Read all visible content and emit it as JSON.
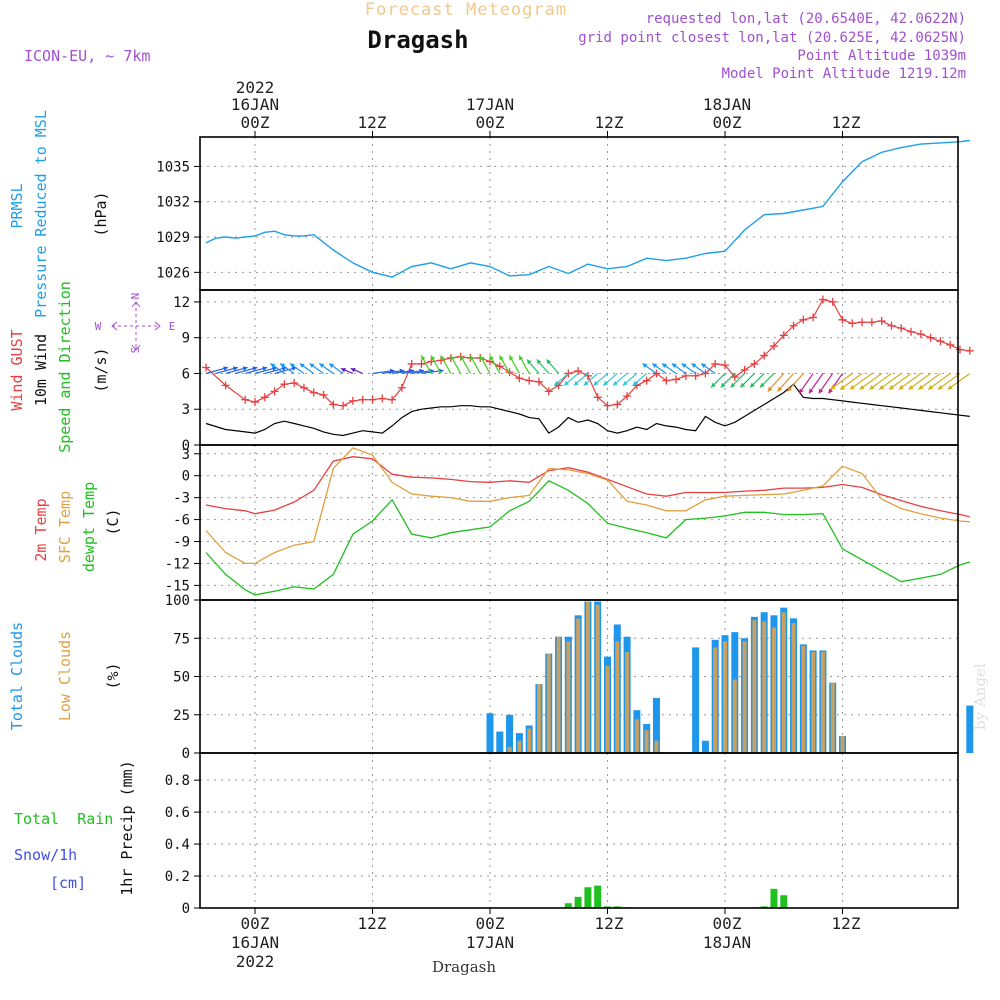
{
  "header": {
    "subtitle": "Forecast Meteogram",
    "title": "Dragash",
    "model": "ICON-EU, ~ 7km",
    "requested": "requested lon,lat (20.6540E, 42.0622N)",
    "grid": "grid point closest lon,lat (20.625E, 42.0625N)",
    "altitude": "Point Altitude 1039m",
    "model_altitude": "Model Point Altitude 1219.12m",
    "footer": "Dragash",
    "watermark": "by Angel"
  },
  "time_axis": {
    "top_year": "2022",
    "top_dates": [
      "16JAN",
      "17JAN",
      "18JAN"
    ],
    "top_hours": [
      "00Z",
      "12Z",
      "00Z",
      "12Z",
      "00Z",
      "12Z"
    ],
    "bottom_hours": [
      "00Z",
      "12Z",
      "00Z",
      "12Z",
      "00Z",
      "12Z"
    ],
    "bottom_dates": [
      "16JAN",
      "17JAN",
      "18JAN"
    ],
    "bottom_year": "2022"
  },
  "labels": {
    "prmsl_1": "PRMSL",
    "prmsl_2": "Pressure Reduced to MSL",
    "prmsl_unit": "(hPa)",
    "wind_1": "Wind GUST",
    "wind_2": "10m Wind",
    "wind_3": "Speed and Direction",
    "wind_unit": "(m/s)",
    "compass_n": "N",
    "compass_s": "S",
    "compass_w": "W",
    "compass_e": "E",
    "temp_1": "2m Temp",
    "temp_2": "SFC Temp",
    "temp_3": "dewpt Temp",
    "temp_unit": "(C)",
    "cloud_1": "Total Clouds",
    "cloud_2": "Low Clouds",
    "cloud_unit": "(%)",
    "precip_1": "Total  Rain",
    "precip_2": "Snow/1h",
    "precip_3": "[cm]",
    "precip_unit": "1hr Precip (mm)"
  },
  "colors": {
    "pressure": "#1ea0e8",
    "gust": "#e84040",
    "wind": "#000000",
    "temp2m": "#e84040",
    "sfc": "#e0a040",
    "dewpt": "#20c020",
    "total_clouds": "#1e96ec",
    "low_clouds": "#c8a060",
    "rain": "#20c020",
    "snow": "#4050e0",
    "title_subtitle": "#f0c890",
    "meta": "#a050d0"
  },
  "chart_data": [
    {
      "type": "line",
      "title": "PRMSL Pressure Reduced to MSL",
      "ylabel": "(hPa)",
      "x_unit": "hours since 16JAN 00Z",
      "ylim": [
        1024.5,
        1037.5
      ],
      "yticks": [
        1026,
        1029,
        1032,
        1035
      ],
      "x": [
        -5,
        -4,
        -3,
        -2,
        -1,
        0,
        1,
        2,
        3,
        4,
        5,
        6,
        8,
        10,
        12,
        14,
        16,
        18,
        20,
        22,
        24,
        26,
        28,
        30,
        32,
        34,
        36,
        38,
        40,
        42,
        44,
        46,
        48,
        50,
        52,
        54,
        56,
        58,
        60,
        62,
        64,
        66,
        68,
        70,
        72,
        73
      ],
      "series": [
        {
          "name": "PRMSL",
          "values": [
            1028.5,
            1028.9,
            1029.0,
            1028.9,
            1029.0,
            1029.1,
            1029.4,
            1029.5,
            1029.2,
            1029.1,
            1029.1,
            1029.2,
            1027.9,
            1026.8,
            1026.0,
            1025.6,
            1026.5,
            1026.8,
            1026.3,
            1026.8,
            1026.5,
            1025.7,
            1025.8,
            1026.5,
            1025.9,
            1026.7,
            1026.3,
            1026.5,
            1027.2,
            1027.0,
            1027.2,
            1027.6,
            1027.8,
            1029.6,
            1030.9,
            1031.0,
            1031.3,
            1031.6,
            1033.7,
            1035.4,
            1036.2,
            1036.6,
            1036.9,
            1037.0,
            1037.1,
            1037.2
          ]
        }
      ]
    },
    {
      "type": "line",
      "title": "Wind GUST / 10m Wind Speed and Direction",
      "ylabel": "(m/s)",
      "x_unit": "hours since 16JAN 00Z",
      "ylim": [
        0,
        13
      ],
      "yticks": [
        0,
        3,
        6,
        9,
        12
      ],
      "x": [
        -5,
        -3,
        -1,
        0,
        1,
        2,
        3,
        4,
        5,
        6,
        7,
        8,
        9,
        10,
        11,
        12,
        13,
        14,
        15,
        16,
        17,
        18,
        19,
        20,
        21,
        22,
        23,
        24,
        25,
        26,
        27,
        28,
        29,
        30,
        31,
        32,
        33,
        34,
        35,
        36,
        37,
        38,
        39,
        40,
        41,
        42,
        43,
        44,
        45,
        46,
        47,
        48,
        49,
        50,
        51,
        52,
        53,
        54,
        55,
        56,
        57,
        58,
        59,
        60,
        61,
        62,
        63,
        64,
        65,
        66,
        67,
        68,
        69,
        70,
        71,
        72,
        73
      ],
      "series": [
        {
          "name": "Wind GUST",
          "values": [
            6.5,
            5.0,
            3.8,
            3.6,
            4.0,
            4.5,
            5.1,
            5.2,
            4.8,
            4.4,
            4.2,
            3.4,
            3.3,
            3.7,
            3.8,
            3.8,
            3.9,
            3.8,
            4.8,
            6.8,
            6.8,
            7.0,
            7.1,
            7.3,
            7.4,
            7.3,
            7.3,
            7.0,
            6.6,
            6.1,
            5.6,
            5.4,
            5.3,
            4.5,
            5.0,
            6.0,
            6.2,
            5.8,
            4.0,
            3.3,
            3.4,
            4.1,
            5.0,
            5.4,
            6.0,
            5.4,
            5.5,
            5.8,
            5.8,
            6.0,
            6.8,
            6.7,
            5.7,
            6.3,
            6.8,
            7.5,
            8.3,
            9.2,
            10.0,
            10.5,
            10.7,
            12.2,
            12.0,
            10.5,
            10.2,
            10.3,
            10.3,
            10.4,
            10.0,
            9.8,
            9.5,
            9.3,
            9.0,
            8.7,
            8.4,
            8.0,
            7.9
          ]
        },
        {
          "name": "10m Wind",
          "values": [
            1.8,
            1.3,
            1.1,
            1.0,
            1.3,
            1.8,
            2.0,
            1.8,
            1.6,
            1.4,
            1.1,
            0.9,
            0.8,
            1.0,
            1.2,
            1.1,
            1.0,
            1.6,
            2.3,
            2.8,
            3.0,
            3.1,
            3.2,
            3.2,
            3.3,
            3.3,
            3.2,
            3.2,
            3.0,
            2.8,
            2.6,
            2.3,
            2.2,
            1.0,
            1.5,
            2.3,
            1.9,
            2.1,
            1.8,
            1.2,
            1.0,
            1.2,
            1.5,
            1.3,
            1.8,
            1.6,
            1.5,
            1.3,
            1.2,
            2.4,
            1.9,
            1.6,
            1.9,
            2.4,
            2.9,
            3.4,
            3.9,
            4.4,
            5.1,
            4.0,
            3.9,
            3.9,
            3.8,
            3.7,
            3.6,
            3.5,
            3.4,
            3.3,
            3.2,
            3.1,
            3.0,
            2.9,
            2.8,
            2.7,
            2.6,
            2.5,
            2.4
          ]
        }
      ]
    },
    {
      "type": "line",
      "title": "2m Temp / SFC Temp / dewpt Temp",
      "ylabel": "(C)",
      "x_unit": "hours since 16JAN 00Z",
      "ylim": [
        -17,
        4.2
      ],
      "yticks": [
        -15,
        -12,
        -9,
        -6,
        -3,
        0,
        3
      ],
      "x": [
        -5,
        -3,
        -1,
        0,
        2,
        4,
        6,
        8,
        10,
        12,
        14,
        16,
        18,
        20,
        22,
        24,
        26,
        28,
        30,
        32,
        34,
        36,
        38,
        40,
        42,
        44,
        46,
        48,
        50,
        52,
        54,
        56,
        58,
        60,
        62,
        64,
        66,
        68,
        70,
        72,
        73
      ],
      "series": [
        {
          "name": "2m Temp",
          "values": [
            -4.0,
            -4.5,
            -4.8,
            -5.2,
            -4.7,
            -3.6,
            -2.0,
            2.0,
            2.6,
            2.3,
            0.2,
            -0.2,
            -0.3,
            -0.5,
            -0.8,
            -0.9,
            -0.7,
            -0.9,
            0.7,
            1.1,
            0.5,
            -0.5,
            -1.5,
            -2.5,
            -2.8,
            -2.3,
            -2.3,
            -2.3,
            -2.1,
            -2.0,
            -1.7,
            -1.7,
            -1.6,
            -1.2,
            -1.6,
            -2.6,
            -3.4,
            -4.2,
            -4.8,
            -5.3,
            -5.6
          ]
        },
        {
          "name": "SFC Temp",
          "values": [
            -7.5,
            -10.5,
            -12.0,
            -12.0,
            -10.5,
            -9.5,
            -9.0,
            1.0,
            3.8,
            2.8,
            -0.9,
            -2.5,
            -2.8,
            -3.0,
            -3.5,
            -3.5,
            -3.0,
            -2.7,
            1.0,
            0.8,
            0.3,
            -0.6,
            -3.5,
            -4.0,
            -4.8,
            -4.8,
            -3.3,
            -2.8,
            -2.7,
            -2.6,
            -2.5,
            -2.0,
            -1.4,
            1.3,
            0.3,
            -3.2,
            -4.5,
            -5.2,
            -5.8,
            -6.2,
            -6.3
          ]
        },
        {
          "name": "dewpt Temp",
          "values": [
            -10.5,
            -13.5,
            -15.6,
            -16.3,
            -15.8,
            -15.2,
            -15.5,
            -13.5,
            -8.0,
            -6.2,
            -3.3,
            -8.0,
            -8.5,
            -7.8,
            -7.4,
            -7.0,
            -4.8,
            -3.5,
            -0.7,
            -2.0,
            -3.8,
            -6.5,
            -7.2,
            -7.8,
            -8.5,
            -6.0,
            -5.8,
            -5.5,
            -5.0,
            -5.0,
            -5.3,
            -5.3,
            -5.2,
            -10.0,
            -11.5,
            -13.0,
            -14.5,
            -14.0,
            -13.5,
            -12.2,
            -11.8
          ]
        }
      ]
    },
    {
      "type": "bar",
      "title": "Total Clouds / Low Clouds",
      "ylabel": "(%)",
      "x_unit": "hours since 16JAN 00Z",
      "ylim": [
        0,
        100
      ],
      "yticks": [
        0,
        25,
        50,
        75,
        100
      ],
      "x": [
        24,
        25,
        26,
        27,
        28,
        29,
        30,
        31,
        32,
        33,
        34,
        35,
        36,
        37,
        38,
        39,
        40,
        41,
        42,
        43,
        44,
        45,
        46,
        47,
        48,
        49,
        50,
        51,
        52,
        53,
        54,
        55,
        56,
        57,
        58,
        59,
        60,
        61,
        62,
        63,
        64,
        65,
        66,
        67,
        68,
        69,
        70,
        71,
        72,
        73
      ],
      "series": [
        {
          "name": "Total Clouds",
          "values": [
            26,
            14,
            25,
            13,
            18,
            45,
            65,
            76,
            76,
            90,
            99,
            99,
            63,
            84,
            76,
            28,
            19,
            36,
            0,
            0,
            0,
            69,
            8,
            74,
            77,
            79,
            75,
            89,
            92,
            90,
            95,
            88,
            71,
            67,
            67,
            46,
            11,
            0,
            0,
            0,
            0,
            0,
            0,
            0,
            0,
            0,
            0,
            0,
            0,
            31
          ]
        },
        {
          "name": "Low Clouds",
          "values": [
            0,
            0,
            4,
            8,
            16,
            45,
            65,
            76,
            73,
            88,
            99,
            97,
            57,
            73,
            66,
            22,
            15,
            8,
            0,
            0,
            0,
            0,
            0,
            69,
            73,
            48,
            73,
            87,
            86,
            82,
            92,
            85,
            70,
            66,
            66,
            46,
            11,
            0,
            0,
            0,
            0,
            0,
            0,
            0,
            0,
            0,
            0,
            0,
            0,
            0
          ]
        }
      ]
    },
    {
      "type": "bar",
      "title": "1hr Precip",
      "ylabel": "1hr Precip (mm)",
      "x_unit": "hours since 16JAN 00Z",
      "ylim": [
        0,
        0.97
      ],
      "yticks": [
        0,
        0.2,
        0.4,
        0.6,
        0.8
      ],
      "x": [
        32,
        33,
        34,
        35,
        36,
        37,
        38,
        51,
        52,
        53,
        54
      ],
      "series": [
        {
          "name": "Total Rain",
          "values": [
            0.03,
            0.07,
            0.13,
            0.14,
            0.01,
            0.01,
            0.005,
            0.005,
            0.01,
            0.12,
            0.08
          ]
        },
        {
          "name": "Snow/1h",
          "values": [
            0,
            0,
            0,
            0,
            0,
            0,
            0,
            0,
            0,
            0,
            0
          ]
        }
      ]
    }
  ]
}
